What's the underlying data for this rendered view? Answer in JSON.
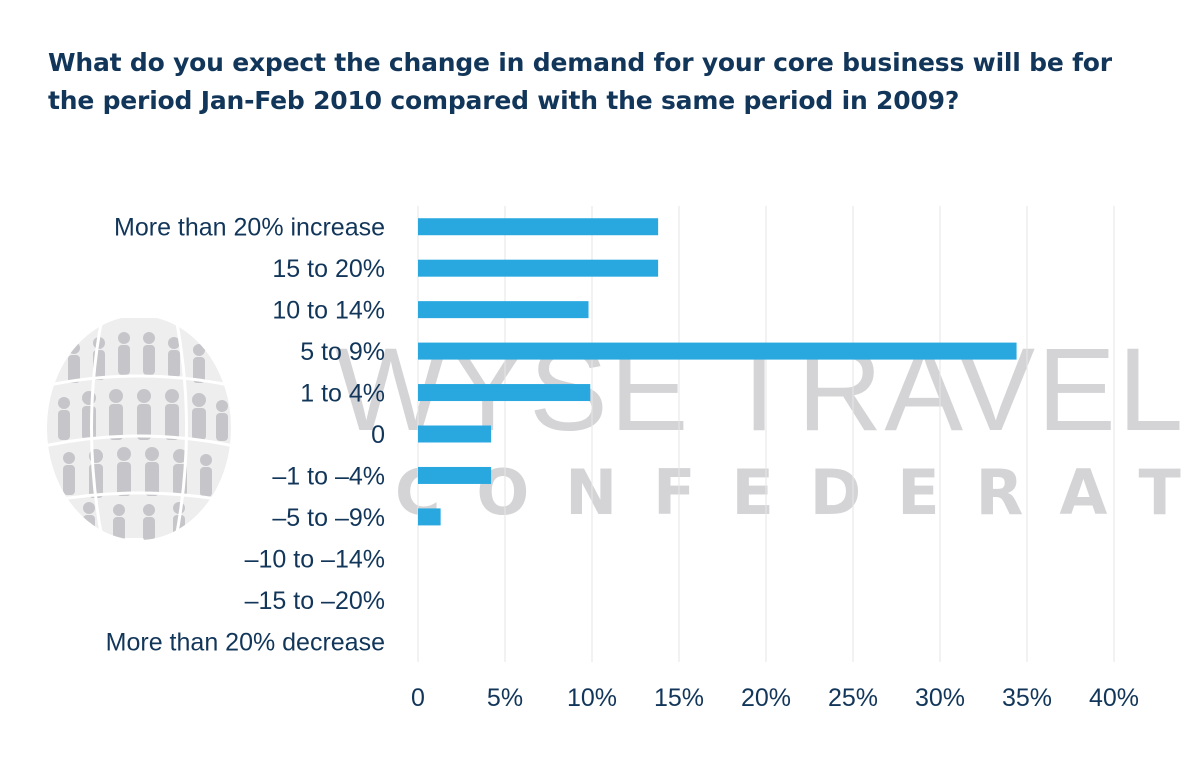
{
  "title": "What do you expect the change in demand for your core business will be for the period Jan-Feb 2010 compared with the same period in 2009?",
  "watermark": {
    "line1": "WYSE TRAVEL",
    "line2": "CONFEDERATION"
  },
  "colors": {
    "bar": "#29a8e0",
    "title": "#12365a",
    "text": "#12365a",
    "grid": "#e6e6e6"
  },
  "chart_data": {
    "type": "bar",
    "orientation": "horizontal",
    "categories": [
      "More than 20% increase",
      "15 to 20%",
      "10 to 14%",
      "5 to 9%",
      "1 to 4%",
      "0",
      "–1 to –4%",
      "–5 to –9%",
      "–10 to –14%",
      "–15 to –20%",
      "More than 20% decrease"
    ],
    "values": [
      13.8,
      13.8,
      9.8,
      34.4,
      9.9,
      4.2,
      4.2,
      1.3,
      0,
      0,
      0
    ],
    "xlim": [
      0,
      40
    ],
    "xticks": [
      0,
      5,
      10,
      15,
      20,
      25,
      30,
      35,
      40
    ],
    "xtick_labels": [
      "0",
      "5%",
      "10%",
      "15%",
      "20%",
      "25%",
      "30%",
      "35%",
      "40%"
    ],
    "grid": true,
    "legend": "none"
  }
}
